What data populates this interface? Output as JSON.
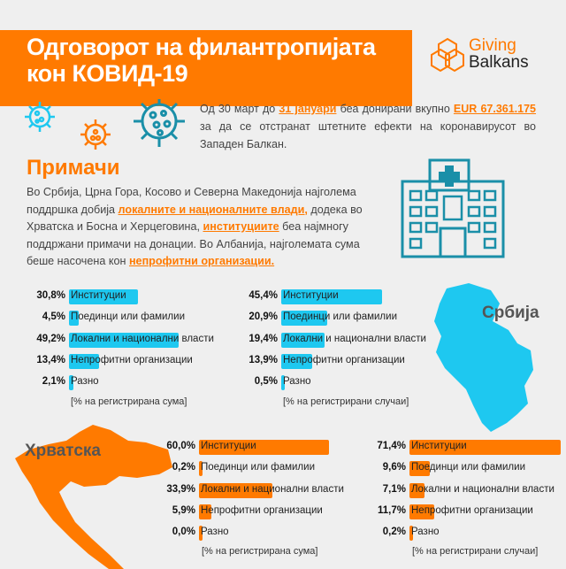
{
  "header": {
    "title_line1": "Одговорот на филантропијата",
    "title_line2": "кон КОВИД-19",
    "logo": {
      "line1": "Giving",
      "line2": "Balkans"
    }
  },
  "intro": {
    "part1": "Од 30 март до ",
    "highlight1": "31 јануари",
    "part2": " беа донирани вкупно ",
    "highlight2": "EUR 67.361.175",
    "part3": " за да се отстранат штетните ефекти на коронавирусот во Западен Балкан."
  },
  "recipients": {
    "title": "Примачи",
    "p1": "Во Србија, Црна Гора, Косово и Северна Македонија најголема поддршка добија ",
    "h1": "локалните и националните влади,",
    "p2": " додека во Хрватска и Босна и Херцеговина, ",
    "h2": "институциите",
    "p3": " беа најмногу поддржани примачи на донации. Во Албанија, најголемата сума беше насочена кон ",
    "h3": "непрофитни организации."
  },
  "countries": {
    "serbia": "Србија",
    "croatia": "Хрватска"
  },
  "colors": {
    "orange": "#ff7a00",
    "blue": "#1ec8f0",
    "teal": "#1a8fa8",
    "background": "#efefef"
  },
  "icons": [
    "virus-icon",
    "virus-icon",
    "virus-icon",
    "hospital-icon",
    "serbia-map",
    "croatia-map",
    "giving-balkans-logo"
  ],
  "chart_data": [
    {
      "type": "bar",
      "country": "Србија",
      "categories": [
        "Институции",
        "Поединци или фамилии",
        "Локални и национални власти",
        "Непрофитни организации",
        "Разно"
      ],
      "values": [
        30.8,
        4.5,
        49.2,
        13.4,
        2.1
      ],
      "labels": [
        "30,8%",
        "4,5%",
        "49,2%",
        "13,4%",
        "2,1%"
      ],
      "note": "[% на регистрирана сума]",
      "color": "#1ec8f0"
    },
    {
      "type": "bar",
      "country": "Србија",
      "categories": [
        "Институции",
        "Поединци или фамилии",
        "Локални и национални власти",
        "Непрофитни организации",
        "Разно"
      ],
      "values": [
        45.4,
        20.9,
        19.4,
        13.9,
        0.5
      ],
      "labels": [
        "45,4%",
        "20,9%",
        "19,4%",
        "13,9%",
        "0,5%"
      ],
      "note": "[% на регистрирани случаи]",
      "color": "#1ec8f0"
    },
    {
      "type": "bar",
      "country": "Хрватска",
      "categories": [
        "Институции",
        "Поединци или фамилии",
        "Локални и национални власти",
        "Непрофитни организации",
        "Разно"
      ],
      "values": [
        60.0,
        0.2,
        33.9,
        5.9,
        0.0
      ],
      "labels": [
        "60,0%",
        "0,2%",
        "33,9%",
        "5,9%",
        "0,0%"
      ],
      "note": "[% на регистрирана сума]",
      "color": "#ff7a00"
    },
    {
      "type": "bar",
      "country": "Хрватска",
      "categories": [
        "Институции",
        "Поединци или фамилии",
        "Локални и национални власти",
        "Непрофитни организации",
        "Разно"
      ],
      "values": [
        71.4,
        9.6,
        7.1,
        11.7,
        0.2
      ],
      "labels": [
        "71,4%",
        "9,6%",
        "7,1%",
        "11,7%",
        "0,2%"
      ],
      "note": "[% на регистрирани случаи]",
      "color": "#ff7a00"
    }
  ]
}
